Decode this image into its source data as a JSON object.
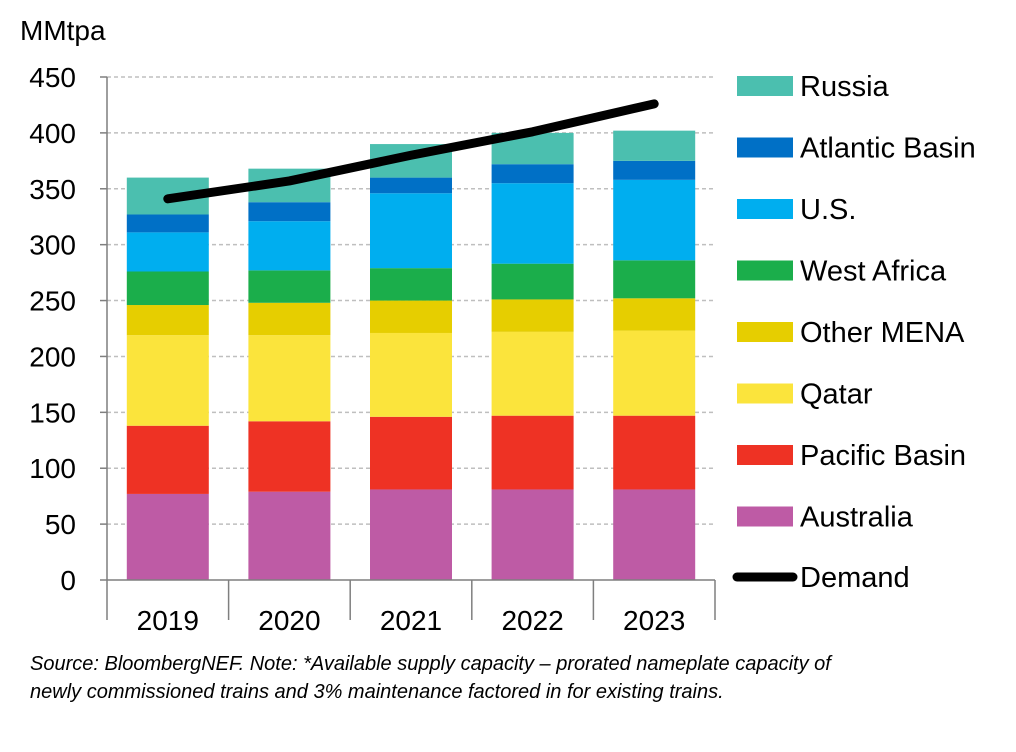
{
  "chart_data": {
    "type": "bar",
    "stacked": true,
    "ylabel": "MMtpa",
    "ylim": [
      0,
      450
    ],
    "yticks": [
      0,
      50,
      100,
      150,
      200,
      250,
      300,
      350,
      400,
      450
    ],
    "grid": "horizontal dashed",
    "legend_position": "right",
    "categories": [
      "2019",
      "2020",
      "2021",
      "2022",
      "2023"
    ],
    "series": [
      {
        "name": "Australia",
        "color": "#BE5BA5",
        "values": [
          77,
          79,
          81,
          81,
          81
        ]
      },
      {
        "name": "Pacific Basin",
        "color": "#EE3224",
        "values": [
          61,
          63,
          65,
          66,
          66
        ]
      },
      {
        "name": "Qatar",
        "color": "#FBE43C",
        "values": [
          81,
          77,
          75,
          75,
          76
        ]
      },
      {
        "name": "Other MENA",
        "color": "#E6CE00",
        "values": [
          27,
          29,
          29,
          29,
          29
        ]
      },
      {
        "name": "West Africa",
        "color": "#1BAE4B",
        "values": [
          30,
          29,
          29,
          32,
          34
        ]
      },
      {
        "name": "U.S.",
        "color": "#00AEEF",
        "values": [
          35,
          44,
          67,
          72,
          72
        ]
      },
      {
        "name": "Atlantic Basin",
        "color": "#0070C6",
        "values": [
          16,
          17,
          14,
          17,
          17
        ]
      },
      {
        "name": "Russia",
        "color": "#4BBFAF",
        "values": [
          33,
          30,
          30,
          28,
          27
        ]
      }
    ],
    "line_series": {
      "name": "Demand",
      "color": "#000000",
      "values": [
        341,
        357,
        380,
        401,
        426
      ]
    }
  },
  "note": "Source: BloombergNEF.  Note: *Available supply capacity – prorated nameplate capacity of newly commissioned trains and 3% maintenance factored in for existing trains."
}
